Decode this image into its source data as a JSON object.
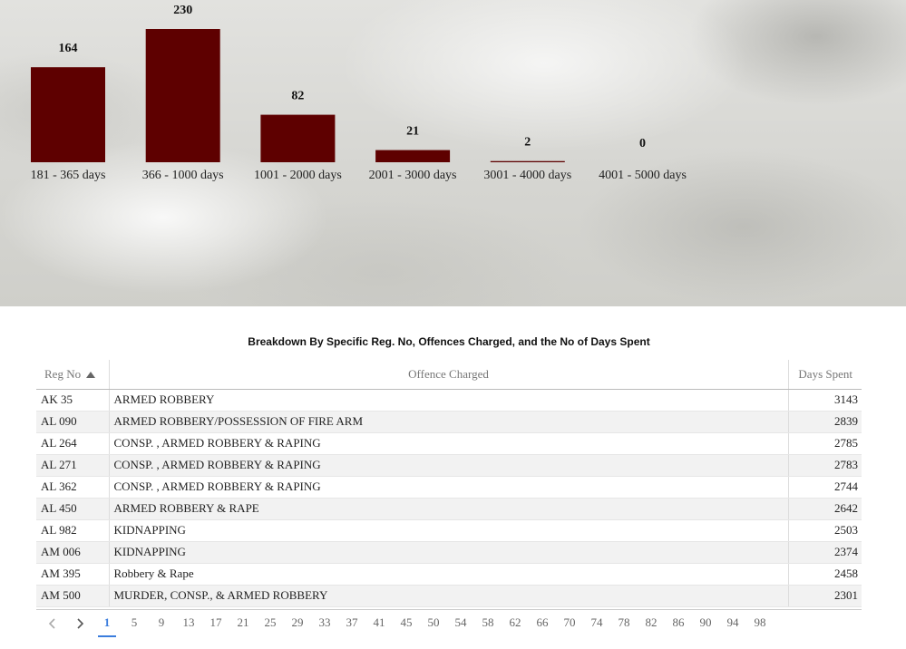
{
  "chart_data": {
    "type": "bar",
    "categories": [
      "181 - 365 days",
      "366 - 1000 days",
      "1001 - 2000 days",
      "2001 - 3000 days",
      "3001 - 4000 days",
      "4001 - 5000 days"
    ],
    "values": [
      164,
      230,
      82,
      21,
      2,
      0
    ],
    "bar_color": "#5e0000"
  },
  "table": {
    "title": "Breakdown By Specific Reg. No, Offences Charged, and the No of Days Spent",
    "columns": {
      "reg": "Reg No",
      "offence": "Offence Charged",
      "days": "Days Spent"
    },
    "rows": [
      {
        "reg": "AK 35",
        "offence": "ARMED ROBBERY",
        "days": "3143"
      },
      {
        "reg": "AL 090",
        "offence": "ARMED ROBBERY/POSSESSION OF FIRE ARM",
        "days": "2839"
      },
      {
        "reg": "AL 264",
        "offence": "CONSP. , ARMED ROBBERY & RAPING",
        "days": "2785"
      },
      {
        "reg": "AL 271",
        "offence": "CONSP. , ARMED ROBBERY & RAPING",
        "days": "2783"
      },
      {
        "reg": "AL 362",
        "offence": "CONSP. , ARMED ROBBERY & RAPING",
        "days": "2744"
      },
      {
        "reg": "AL 450",
        "offence": "ARMED ROBBERY & RAPE",
        "days": "2642"
      },
      {
        "reg": "AL 982",
        "offence": "KIDNAPPING",
        "days": "2503"
      },
      {
        "reg": "AM 006",
        "offence": "KIDNAPPING",
        "days": "2374"
      },
      {
        "reg": "AM 395",
        "offence": "Robbery & Rape",
        "days": "2458"
      },
      {
        "reg": "AM 500",
        "offence": "MURDER, CONSP., & ARMED ROBBERY",
        "days": "2301"
      }
    ]
  },
  "pagination": {
    "prev_icon": "chevron-left-icon",
    "next_icon": "chevron-right-icon",
    "current": "1",
    "pages": [
      "1",
      "5",
      "9",
      "13",
      "17",
      "21",
      "25",
      "29",
      "33",
      "37",
      "41",
      "45",
      "50",
      "54",
      "58",
      "62",
      "66",
      "70",
      "74",
      "78",
      "82",
      "86",
      "90",
      "94",
      "98"
    ],
    "accent_color": "#3b7ddd"
  }
}
